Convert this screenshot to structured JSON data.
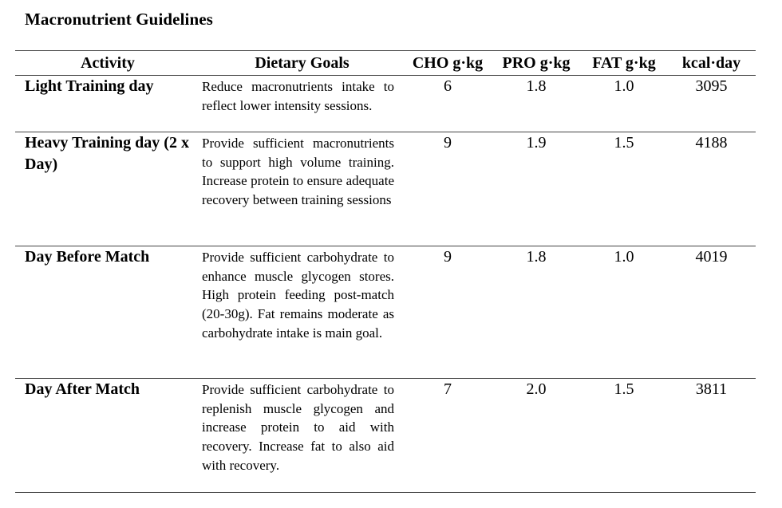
{
  "title": "Macronutrient Guidelines",
  "headers": {
    "activity": "Activity",
    "goals": "Dietary Goals",
    "cho": "CHO g·kg",
    "pro": "PRO g·kg",
    "fat": "FAT g·kg",
    "kcal": "kcal·day"
  },
  "rows": [
    {
      "activity": "Light Training day",
      "goals": "Reduce macronutrients intake to reflect lower intensity sessions.",
      "cho": "6",
      "pro": "1.8",
      "fat": "1.0",
      "kcal": "3095"
    },
    {
      "activity": "Heavy Training day (2 x Day)",
      "goals": "Provide sufficient macronutrients to support high volume training. Increase protein to ensure adequate recovery between training sessions",
      "cho": "9",
      "pro": "1.9",
      "fat": "1.5",
      "kcal": "4188"
    },
    {
      "activity": "Day Before Match",
      "goals": "Provide sufficient carbohydrate to enhance muscle glycogen stores. High protein feeding post-match (20-30g). Fat remains moderate as carbohydrate intake is main goal.",
      "cho": "9",
      "pro": "1.8",
      "fat": "1.0",
      "kcal": "4019"
    },
    {
      "activity": "Day After Match",
      "goals": "Provide sufficient carbohydrate to replenish muscle glycogen and increase protein to aid with recovery. Increase fat to also aid with recovery.",
      "cho": "7",
      "pro": "2.0",
      "fat": "1.5",
      "kcal": "3811"
    }
  ]
}
